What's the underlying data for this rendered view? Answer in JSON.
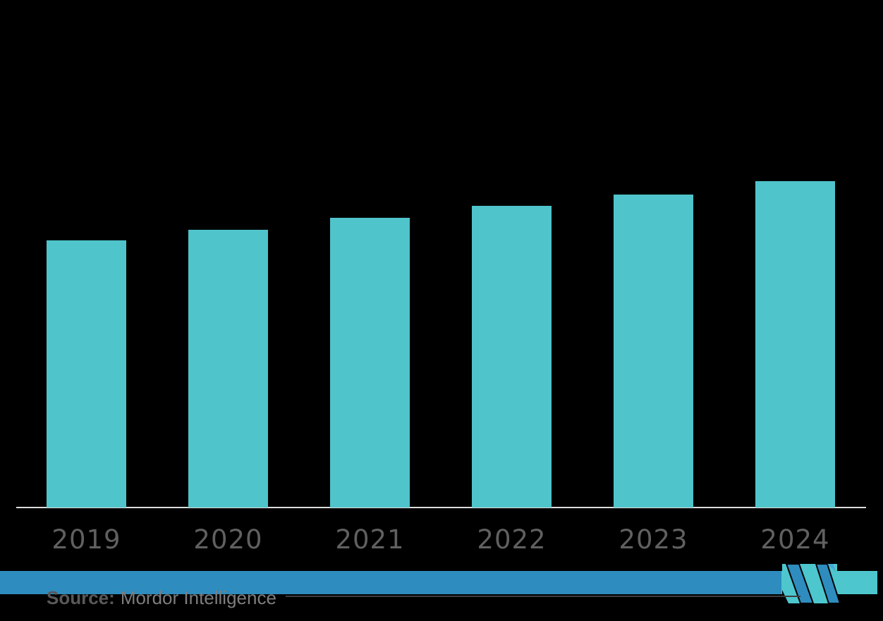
{
  "background": "#000000",
  "chart_data": {
    "type": "bar",
    "title": "",
    "xlabel": "",
    "ylabel": "",
    "categories": [
      "2019",
      "2020",
      "2021",
      "2022",
      "2023",
      "2024"
    ],
    "values": [
      100,
      104,
      108.4,
      112.9,
      117.2,
      122.2
    ],
    "value_basis": "index (2019 = 100); no y-axis ticks or data labels are visible in the image, values estimated from relative bar heights",
    "ylim": [
      0,
      122.2
    ],
    "grid": false,
    "legend": false,
    "bar_color": "#4FC4CB",
    "tick_label_color": "#606060",
    "axis_line_color": "#DCDCDC"
  },
  "footer": {
    "source_label": "Source:",
    "source_text": "Mordor Intelligence",
    "band_blue_color": "#2E8CBE",
    "band_teal_color": "#4EC6CD",
    "logo": "mordor-intelligence-m-monogram"
  }
}
